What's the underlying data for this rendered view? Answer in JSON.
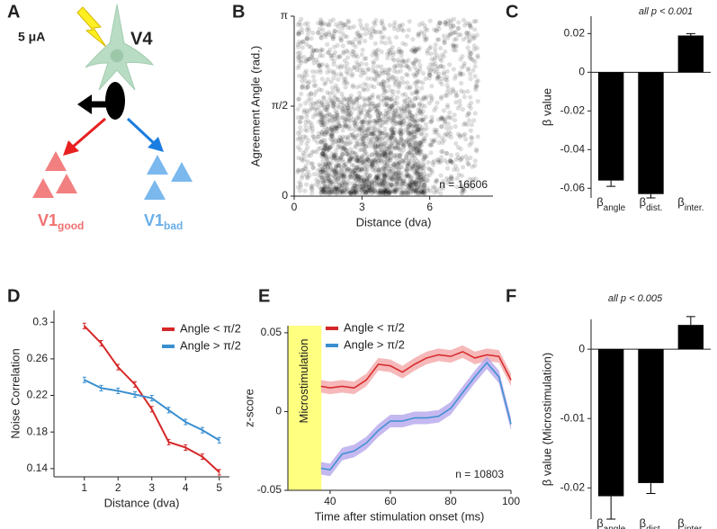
{
  "panel_labels": [
    "A",
    "B",
    "C",
    "D",
    "E",
    "F"
  ],
  "diagram": {
    "stimulus": "5 μA",
    "source": "V4",
    "targets": [
      {
        "label": "V1",
        "subscript": "good"
      },
      {
        "label": "V1",
        "subscript": "bad"
      }
    ]
  },
  "chart_data": [
    {
      "type": "density",
      "xlabel": "Distance (dva)",
      "ylabel": "Agreement Angle (rad.)",
      "xlim": [
        0,
        8.8
      ],
      "xticks": [
        0,
        3,
        6
      ],
      "ylim": [
        0,
        3.1416
      ],
      "yticks": [
        0,
        {
          "value": 1.5708,
          "label": "π/2"
        },
        {
          "value": 3.1416,
          "label": "π"
        }
      ],
      "annotation": "n = 16606",
      "color": "#000000"
    },
    {
      "type": "bar",
      "ylabel": "β value",
      "annotation": "all p < 0.001",
      "categories": [
        {
          "symbol": "β",
          "subscript": "angle"
        },
        {
          "symbol": "β",
          "subscript": "dist."
        },
        {
          "symbol": "β",
          "subscript": "inter."
        }
      ],
      "values": [
        -0.056,
        -0.063,
        0.019
      ],
      "errors": [
        0.003,
        0.002,
        0.001
      ],
      "color": "#000000",
      "ylim": [
        -0.065,
        0.029
      ],
      "yticks": [
        0.02,
        0,
        -0.02,
        -0.04,
        -0.06
      ]
    },
    {
      "type": "line",
      "xlabel": "Distance (dva)",
      "ylabel": "Noise Correlation",
      "x": [
        1,
        1.5,
        2,
        2.5,
        3,
        3.5,
        4,
        4.5,
        5
      ],
      "series": [
        {
          "name": "Angle < π/2",
          "color": "#d62728",
          "values": [
            0.296,
            0.277,
            0.251,
            0.232,
            0.205,
            0.169,
            0.163,
            0.153,
            0.136
          ],
          "errors": [
            0.003,
            0.003,
            0.003,
            0.003,
            0.003,
            0.003,
            0.003,
            0.003,
            0.003
          ]
        },
        {
          "name": "Angle > π/2",
          "color": "#3a8fd0",
          "values": [
            0.237,
            0.228,
            0.225,
            0.221,
            0.217,
            0.204,
            0.191,
            0.182,
            0.171
          ],
          "errors": [
            0.003,
            0.003,
            0.003,
            0.003,
            0.003,
            0.003,
            0.003,
            0.003,
            0.003
          ]
        }
      ],
      "xlim": [
        0.1,
        5.3
      ],
      "xticks": [
        1,
        2,
        3,
        4,
        5
      ],
      "ylim": [
        0.131,
        0.313
      ],
      "yticks": [
        0.14,
        0.18,
        0.22,
        0.26,
        0.3
      ]
    },
    {
      "type": "band-line",
      "xlabel": "Time after stimulation onset (ms)",
      "ylabel": "z-score",
      "annotation": "n = 10803",
      "shaded_label": "Microstimulation",
      "shaded_region": [
        26,
        37
      ],
      "shaded_color": "#ffff80",
      "x": [
        37,
        40,
        44,
        48,
        52,
        56,
        60,
        64,
        68,
        72,
        76,
        80,
        84,
        88,
        92,
        96,
        100
      ],
      "series": [
        {
          "name": "Angle < π/2",
          "color": "#d62728",
          "band_color": "#f4a6a8",
          "values": [
            0.016,
            0.015,
            0.016,
            0.015,
            0.02,
            0.03,
            0.029,
            0.025,
            0.03,
            0.034,
            0.036,
            0.035,
            0.038,
            0.034,
            0.036,
            0.035,
            0.02
          ],
          "errors": [
            0.004,
            0.004,
            0.004,
            0.004,
            0.004,
            0.004,
            0.004,
            0.004,
            0.004,
            0.004,
            0.004,
            0.004,
            0.004,
            0.004,
            0.004,
            0.004,
            0.004
          ]
        },
        {
          "name": "Angle > π/2",
          "color": "#3a8fd0",
          "band_color": "#b7a6ec",
          "values": [
            -0.036,
            -0.037,
            -0.027,
            -0.025,
            -0.02,
            -0.012,
            -0.006,
            -0.006,
            -0.004,
            -0.004,
            -0.003,
            0.002,
            0.012,
            0.022,
            0.031,
            0.022,
            -0.008
          ],
          "errors": [
            0.004,
            0.004,
            0.004,
            0.004,
            0.004,
            0.004,
            0.004,
            0.004,
            0.004,
            0.004,
            0.004,
            0.004,
            0.004,
            0.004,
            0.004,
            0.004,
            0.004
          ]
        }
      ],
      "xlim": [
        26,
        100
      ],
      "xticks": [
        40,
        60,
        80,
        100
      ],
      "ylim": [
        -0.05,
        0.0545
      ],
      "yticks": [
        -0.05,
        0,
        0.05
      ]
    },
    {
      "type": "bar",
      "ylabel": "β value (Microstimulation)",
      "annotation": "all p < 0.005",
      "categories": [
        {
          "symbol": "β",
          "subscript": "angle"
        },
        {
          "symbol": "β",
          "subscript": "dist."
        },
        {
          "symbol": "β",
          "subscript": "inter."
        }
      ],
      "values": [
        -0.0212,
        -0.0193,
        0.0035
      ],
      "errors": [
        0.0033,
        0.0015,
        0.0012
      ],
      "color": "#000000",
      "ylim": [
        -0.0245,
        0.0043
      ],
      "yticks": [
        0,
        -0.01,
        -0.02
      ]
    }
  ]
}
